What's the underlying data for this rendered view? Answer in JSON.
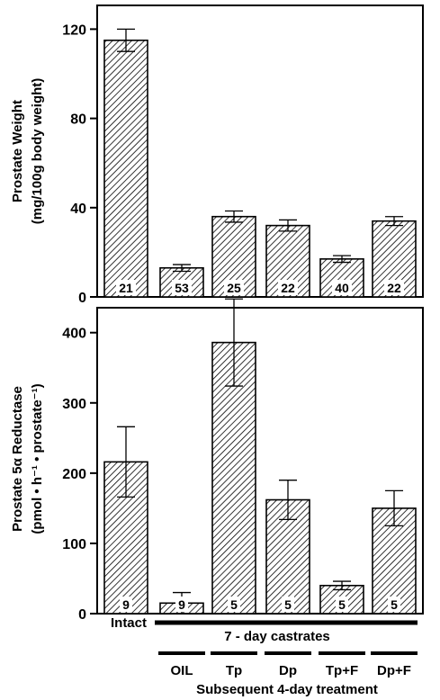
{
  "chart_data": [
    {
      "type": "bar",
      "ylabel_line1": "Prostate Weight",
      "ylabel_line2": "(mg/100g body weight)",
      "ylim": [
        0,
        125
      ],
      "yticks": [
        0,
        40,
        80,
        120
      ],
      "categories": [
        "Intact",
        "OIL",
        "Tp",
        "Dp",
        "Tp+F",
        "Dp+F"
      ],
      "values": [
        115,
        13,
        36,
        32,
        17,
        34
      ],
      "errors": [
        5,
        1.5,
        2.5,
        2.5,
        1.5,
        2
      ],
      "n_labels": [
        "21",
        "53",
        "25",
        "22",
        "40",
        "22"
      ],
      "grid": false
    },
    {
      "type": "bar",
      "ylabel_line1": "Prostate 5α Reductase",
      "ylabel_line2": "(pmol • h⁻¹ • prostate⁻¹)",
      "ylim": [
        0,
        415
      ],
      "yticks": [
        0,
        100,
        200,
        300,
        400
      ],
      "categories": [
        "Intact",
        "OIL",
        "Tp",
        "Dp",
        "Tp+F",
        "Dp+F"
      ],
      "values": [
        216,
        15,
        386,
        162,
        40,
        150
      ],
      "errors": [
        50,
        15,
        62,
        28,
        6,
        25
      ],
      "n_labels": [
        "9",
        "9",
        "5",
        "5",
        "5",
        "5"
      ],
      "grid": false
    }
  ],
  "labels": {
    "intact": "Intact",
    "castrates": "7 - day castrates",
    "treatments": [
      "OIL",
      "Tp",
      "Dp",
      "Tp+F",
      "Dp+F"
    ],
    "footer": "Subsequent 4-day treatment"
  },
  "colors": {
    "bar_edge": "#000000",
    "hatch": "#000000",
    "background": "#ffffff"
  }
}
